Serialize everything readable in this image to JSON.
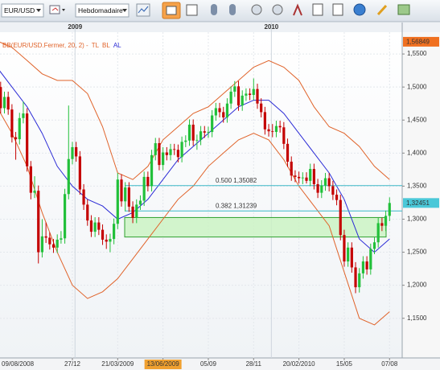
{
  "toolbar": {
    "symbol": "EUR/USD",
    "timeframe": "Hebdomadaire"
  },
  "chart_data": {
    "type": "candlestick",
    "indicator": "BB(EUR/USD.Fermer, 20, 2) -",
    "year_labels": [
      "2009",
      "2010"
    ],
    "categories": [
      "09/08/2008",
      null,
      null,
      null,
      null,
      null,
      null,
      null,
      null,
      null,
      null,
      null,
      null,
      null,
      null,
      null,
      null,
      null,
      null,
      null,
      "27/12",
      null,
      null,
      null,
      null,
      null,
      null,
      null,
      null,
      null,
      null,
      null,
      "21/03/2009",
      null,
      null,
      null,
      null,
      null,
      null,
      null,
      null,
      null,
      null,
      null,
      "13/06/2009",
      null,
      null,
      null,
      null,
      null,
      null,
      null,
      null,
      null,
      null,
      null,
      "05/09",
      null,
      null,
      null,
      null,
      null,
      null,
      null,
      null,
      null,
      null,
      null,
      "28/11",
      null,
      null,
      null,
      null,
      null,
      null,
      null,
      null,
      null,
      null,
      null,
      "20/02/2010",
      null,
      null,
      null,
      null,
      null,
      null,
      null,
      null,
      null,
      null,
      null,
      "15/05",
      null,
      null,
      null,
      null,
      null,
      null,
      null,
      null,
      null,
      null,
      null,
      "07/08"
    ],
    "highlighted_category": 44,
    "open": [
      1.525,
      1.5,
      1.468,
      1.485,
      1.466,
      1.424,
      1.421,
      1.453,
      1.46,
      1.38,
      1.34,
      1.343,
      1.25,
      1.274,
      1.272,
      1.262,
      1.257,
      1.269,
      1.271,
      1.338,
      1.391,
      1.409,
      1.395,
      1.345,
      1.322,
      1.298,
      1.281,
      1.295,
      1.284,
      1.269,
      1.266,
      1.27,
      1.293,
      1.36,
      1.327,
      1.348,
      1.319,
      1.302,
      1.322,
      1.328,
      1.364,
      1.35,
      1.397,
      1.415,
      1.382,
      1.401,
      1.397,
      1.406,
      1.405,
      1.394,
      1.417,
      1.419,
      1.443,
      1.419,
      1.42,
      1.433,
      1.431,
      1.432,
      1.457,
      1.468,
      1.462,
      1.454,
      1.475,
      1.493,
      1.501,
      1.472,
      1.487,
      1.49,
      1.488,
      1.497,
      1.475,
      1.462,
      1.436,
      1.433,
      1.432,
      1.441,
      1.439,
      1.414,
      1.387,
      1.366,
      1.364,
      1.362,
      1.363,
      1.358,
      1.376,
      1.353,
      1.34,
      1.351,
      1.362,
      1.35,
      1.337,
      1.329,
      1.276,
      1.236,
      1.257,
      1.227,
      1.197,
      1.218,
      1.236,
      1.224,
      1.255,
      1.265,
      1.294,
      1.29,
      1.305
    ],
    "high": [
      1.533,
      1.508,
      1.493,
      1.493,
      1.474,
      1.432,
      1.461,
      1.478,
      1.468,
      1.388,
      1.365,
      1.351,
      1.3,
      1.295,
      1.28,
      1.27,
      1.277,
      1.282,
      1.346,
      1.472,
      1.417,
      1.417,
      1.403,
      1.353,
      1.33,
      1.306,
      1.303,
      1.303,
      1.292,
      1.277,
      1.278,
      1.301,
      1.37,
      1.368,
      1.356,
      1.356,
      1.327,
      1.33,
      1.336,
      1.372,
      1.372,
      1.405,
      1.423,
      1.423,
      1.409,
      1.409,
      1.414,
      1.414,
      1.413,
      1.425,
      1.427,
      1.451,
      1.451,
      1.428,
      1.441,
      1.441,
      1.44,
      1.465,
      1.476,
      1.476,
      1.47,
      1.483,
      1.501,
      1.509,
      1.509,
      1.495,
      1.498,
      1.498,
      1.513,
      1.505,
      1.483,
      1.47,
      1.444,
      1.444,
      1.449,
      1.449,
      1.447,
      1.422,
      1.395,
      1.374,
      1.372,
      1.371,
      1.371,
      1.384,
      1.384,
      1.361,
      1.359,
      1.37,
      1.37,
      1.358,
      1.345,
      1.337,
      1.284,
      1.265,
      1.265,
      1.235,
      1.226,
      1.244,
      1.244,
      1.263,
      1.273,
      1.302,
      1.302,
      1.313,
      1.333
    ],
    "low": [
      1.492,
      1.46,
      1.46,
      1.458,
      1.416,
      1.39,
      1.413,
      1.445,
      1.372,
      1.33,
      1.332,
      1.233,
      1.242,
      1.264,
      1.254,
      1.249,
      1.249,
      1.263,
      1.263,
      1.33,
      1.383,
      1.387,
      1.337,
      1.314,
      1.29,
      1.273,
      1.273,
      1.276,
      1.261,
      1.255,
      1.25,
      1.262,
      1.285,
      1.319,
      1.312,
      1.311,
      1.294,
      1.294,
      1.314,
      1.32,
      1.342,
      1.342,
      1.389,
      1.374,
      1.374,
      1.389,
      1.389,
      1.397,
      1.386,
      1.386,
      1.409,
      1.411,
      1.411,
      1.405,
      1.412,
      1.423,
      1.423,
      1.424,
      1.449,
      1.454,
      1.446,
      1.446,
      1.467,
      1.485,
      1.464,
      1.464,
      1.479,
      1.48,
      1.48,
      1.467,
      1.454,
      1.428,
      1.425,
      1.424,
      1.424,
      1.431,
      1.406,
      1.379,
      1.358,
      1.356,
      1.354,
      1.353,
      1.354,
      1.35,
      1.345,
      1.332,
      1.332,
      1.343,
      1.342,
      1.329,
      1.321,
      1.268,
      1.228,
      1.228,
      1.219,
      1.188,
      1.189,
      1.21,
      1.216,
      1.216,
      1.247,
      1.257,
      1.282,
      1.282,
      1.297
    ],
    "close": [
      1.5,
      1.468,
      1.485,
      1.466,
      1.424,
      1.421,
      1.453,
      1.46,
      1.38,
      1.34,
      1.343,
      1.25,
      1.274,
      1.272,
      1.262,
      1.257,
      1.269,
      1.271,
      1.338,
      1.391,
      1.409,
      1.395,
      1.345,
      1.322,
      1.298,
      1.281,
      1.295,
      1.284,
      1.269,
      1.266,
      1.27,
      1.293,
      1.36,
      1.327,
      1.348,
      1.319,
      1.302,
      1.322,
      1.328,
      1.364,
      1.35,
      1.397,
      1.415,
      1.382,
      1.401,
      1.397,
      1.406,
      1.405,
      1.394,
      1.417,
      1.419,
      1.443,
      1.419,
      1.42,
      1.433,
      1.431,
      1.432,
      1.457,
      1.468,
      1.462,
      1.454,
      1.475,
      1.493,
      1.501,
      1.472,
      1.487,
      1.49,
      1.488,
      1.497,
      1.475,
      1.462,
      1.436,
      1.433,
      1.432,
      1.441,
      1.439,
      1.414,
      1.387,
      1.366,
      1.364,
      1.362,
      1.363,
      1.358,
      1.376,
      1.353,
      1.34,
      1.351,
      1.362,
      1.35,
      1.337,
      1.329,
      1.276,
      1.236,
      1.257,
      1.227,
      1.197,
      1.218,
      1.236,
      1.224,
      1.255,
      1.265,
      1.294,
      1.29,
      1.305,
      1.32451
    ],
    "up_color": "#22c03a",
    "down_color": "#c40000",
    "series": [
      {
        "name": "TL",
        "color": "#e0632a",
        "x": [
          0,
          4,
          8,
          12,
          16,
          20,
          24,
          28,
          32,
          36,
          40,
          44,
          48,
          52,
          56,
          60,
          64,
          68,
          72,
          76,
          80,
          84,
          88,
          92,
          96,
          100,
          104
        ],
        "values": [
          1.57,
          1.56,
          1.54,
          1.52,
          1.51,
          1.51,
          1.49,
          1.44,
          1.37,
          1.36,
          1.38,
          1.42,
          1.44,
          1.46,
          1.47,
          1.49,
          1.51,
          1.53,
          1.54,
          1.53,
          1.51,
          1.47,
          1.44,
          1.43,
          1.41,
          1.38,
          1.36
        ]
      },
      {
        "name": "BL",
        "color": "#e0632a",
        "x": [
          0,
          4,
          8,
          12,
          16,
          20,
          24,
          28,
          32,
          36,
          40,
          44,
          48,
          52,
          56,
          60,
          64,
          68,
          72,
          76,
          80,
          84,
          88,
          92,
          96,
          100,
          104
        ],
        "values": [
          1.47,
          1.43,
          1.38,
          1.31,
          1.25,
          1.2,
          1.18,
          1.19,
          1.21,
          1.24,
          1.27,
          1.3,
          1.33,
          1.35,
          1.38,
          1.4,
          1.42,
          1.43,
          1.42,
          1.39,
          1.35,
          1.32,
          1.29,
          1.22,
          1.15,
          1.14,
          1.16
        ]
      },
      {
        "name": "AL",
        "color": "#2b2bd6",
        "x": [
          0,
          4,
          8,
          12,
          16,
          20,
          24,
          28,
          32,
          36,
          40,
          44,
          48,
          52,
          56,
          60,
          64,
          68,
          72,
          76,
          80,
          84,
          88,
          92,
          96,
          100,
          104
        ],
        "values": [
          1.53,
          1.5,
          1.47,
          1.43,
          1.38,
          1.35,
          1.33,
          1.32,
          1.3,
          1.31,
          1.33,
          1.36,
          1.39,
          1.41,
          1.43,
          1.45,
          1.47,
          1.48,
          1.48,
          1.46,
          1.43,
          1.4,
          1.37,
          1.33,
          1.27,
          1.25,
          1.27
        ]
      }
    ],
    "levels": [
      {
        "value": 1.35082,
        "label": "0.500 1,35082"
      },
      {
        "value": 1.31239,
        "label": "0.382 1,31239"
      }
    ],
    "zone": {
      "top": 1.3025,
      "bottom": 1.273
    },
    "high_flag": {
      "value": 1.56849,
      "label": "1,56849"
    },
    "last_flag": {
      "value": 1.32451,
      "label": "1,32451"
    },
    "ylim": [
      1.09,
      1.583
    ],
    "yticks": [
      {
        "value": 1.55,
        "label": "1,5500"
      },
      {
        "value": 1.5,
        "label": "1,5000"
      },
      {
        "value": 1.45,
        "label": "1,4500"
      },
      {
        "value": 1.4,
        "label": "1,4000"
      },
      {
        "value": 1.35,
        "label": "1,3500"
      },
      {
        "value": 1.3,
        "label": "1,3000"
      },
      {
        "value": 1.25,
        "label": "1,2500"
      },
      {
        "value": 1.2,
        "label": "1,2000"
      },
      {
        "value": 1.15,
        "label": "1,1500"
      }
    ],
    "grid": true
  }
}
